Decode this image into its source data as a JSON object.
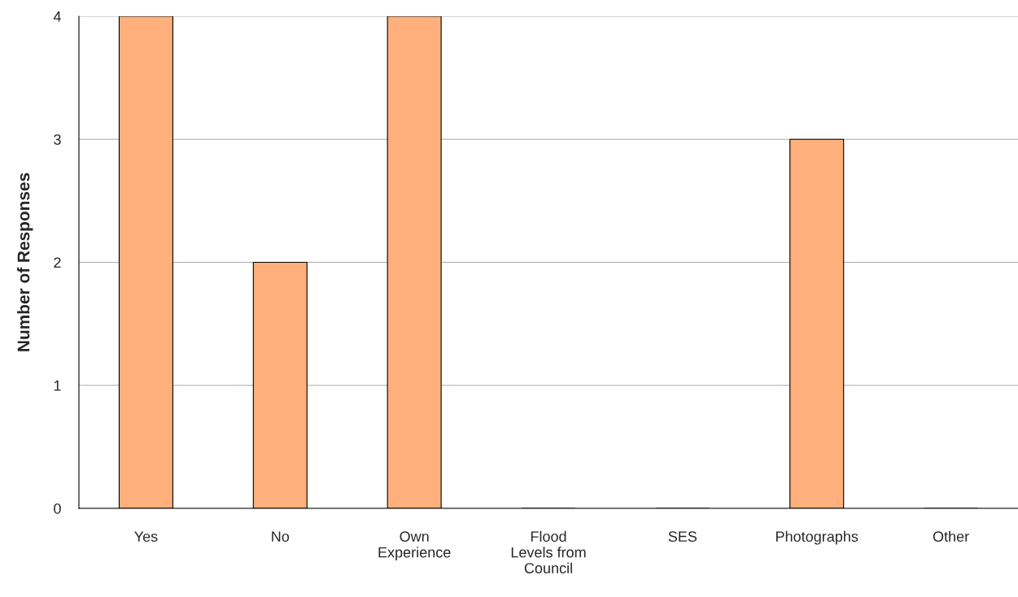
{
  "chart_data": {
    "type": "bar",
    "ylabel": "Number of Responses",
    "categories": [
      "Yes",
      "No",
      "Own Experience",
      "Flood Levels from Council",
      "SES",
      "Photographs",
      "Other"
    ],
    "values": [
      4,
      2,
      4,
      0,
      0,
      3,
      0
    ],
    "color": "#ffb07c",
    "ylim": [
      0,
      4
    ],
    "yticks": [
      0,
      1,
      2,
      3,
      4
    ],
    "grid": "y",
    "legend": false
  }
}
